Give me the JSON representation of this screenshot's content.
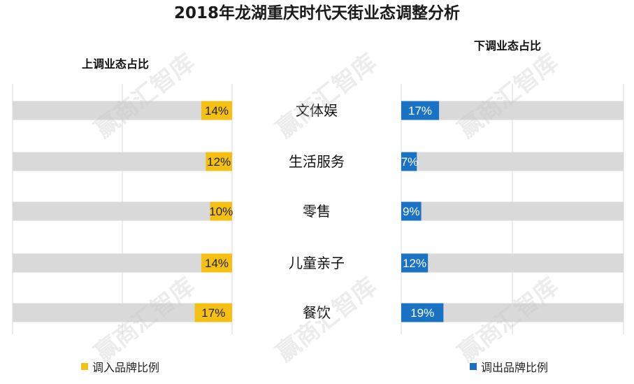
{
  "title": "2018年龙湖重庆时代天街业态调整分析",
  "watermark": "赢商汇智库",
  "chart_data": {
    "type": "bar",
    "orientation": "horizontal-diverging",
    "categories": [
      "文体娱",
      "生活服务",
      "零售",
      "儿童亲子",
      "餐饮"
    ],
    "series": [
      {
        "name": "调入品牌比例",
        "group_label": "上调业态占比",
        "color": "#f5c014",
        "values": [
          14,
          12,
          10,
          14,
          17
        ],
        "labels": [
          "14%",
          "12%",
          "10%",
          "14%",
          "17%"
        ]
      },
      {
        "name": "调出品牌比例",
        "group_label": "下调业态占比",
        "color": "#1a72c4",
        "values": [
          17,
          7,
          9,
          12,
          19
        ],
        "labels": [
          "17%",
          "7%",
          "9%",
          "12%",
          "19%"
        ]
      }
    ],
    "track_color": "#d9d9d9",
    "xlim": [
      0,
      100
    ]
  }
}
